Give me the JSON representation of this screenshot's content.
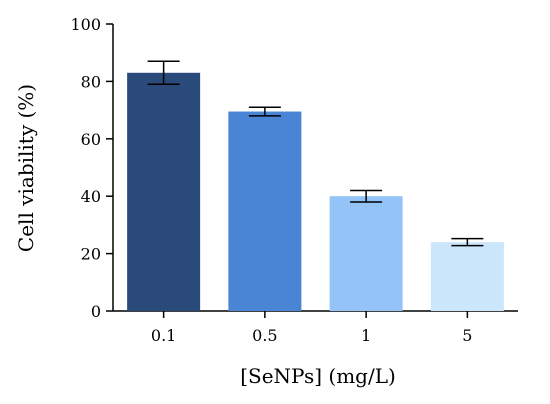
{
  "chart_data": {
    "type": "bar",
    "xlabel": "[SeNPs] (mg/L)",
    "ylabel": "Cell viability (%)",
    "categories": [
      "0.1",
      "0.5",
      "1",
      "5"
    ],
    "values": [
      83,
      69.5,
      40,
      24
    ],
    "errors": [
      4,
      1.5,
      2,
      1.2
    ],
    "bar_colors": [
      "#2b4a7c",
      "#4a84d4",
      "#94c3f7",
      "#cce6fb"
    ],
    "ylim": [
      0,
      100
    ],
    "yticks": [
      "0",
      "20",
      "40",
      "60",
      "80",
      "100"
    ],
    "grid": false,
    "legend": "none"
  }
}
